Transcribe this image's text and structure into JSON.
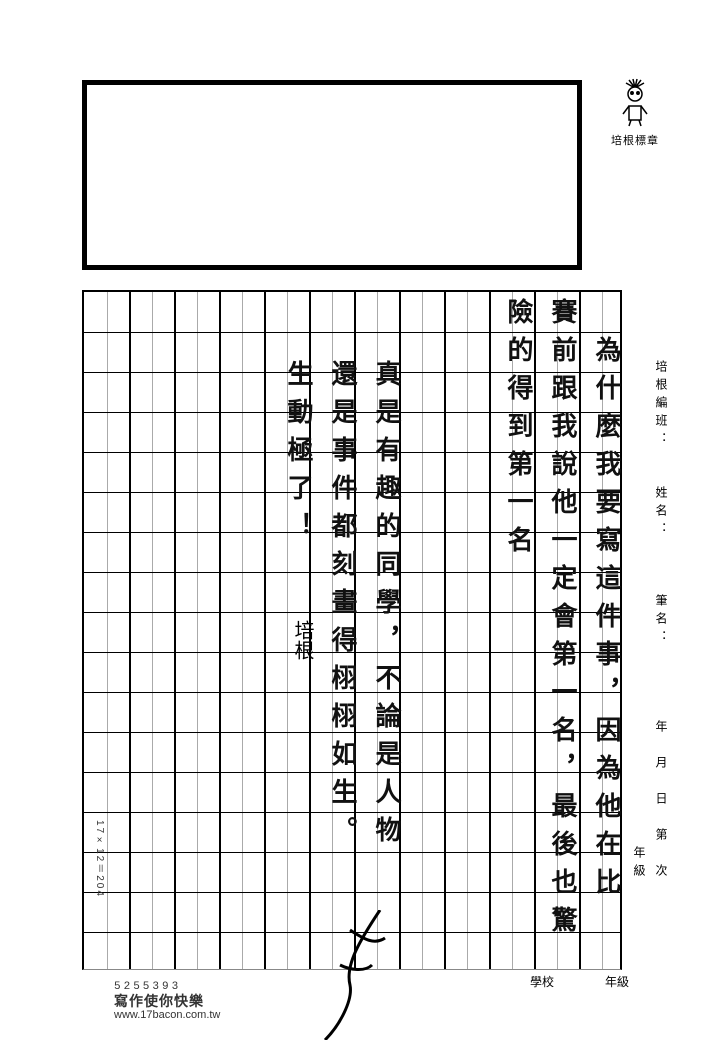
{
  "stamp_label": "培根標章",
  "header_right_col_a": "培根編班：　　姓名：　　　筆名：　　　　年　月　日　第　次",
  "header_right_col_b": "　　　　　　　　　　　　　　　　　　　　　　　　　　　年級",
  "grid": {
    "cols": 12,
    "rows": 17,
    "cell_count_label": "17×12＝204",
    "footer_school": "學校",
    "footer_grade": "年級"
  },
  "handwriting": {
    "c1": "　為什麼我要寫這件事，因為他在比",
    "c2": "賽前跟我說他一定會第一名，最後也驚",
    "c3": "險的得到第一名",
    "c4": "真是有趣的同學，不論是人物",
    "c5": "還是事件都刻畫得栩栩如生。",
    "c6": "生動極了！",
    "teacher": "培根"
  },
  "legend": {
    "numbers": "5255393",
    "slogan": "寫作使你快樂",
    "url": "www.17bacon.com.tw"
  },
  "colors": {
    "ink": "#111111",
    "grid_line": "#000000",
    "minor_line": "#aaaaaa",
    "bg": "#ffffff"
  }
}
